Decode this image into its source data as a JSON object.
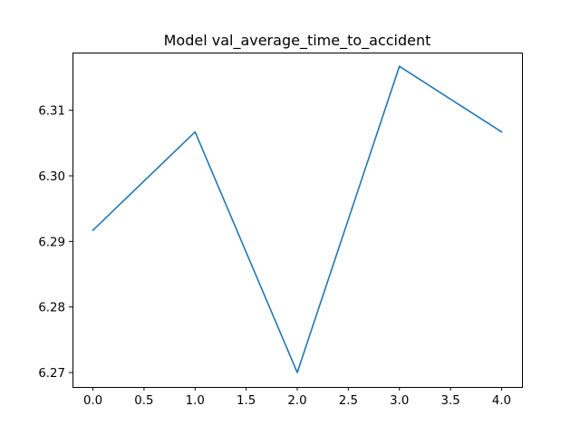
{
  "chart_data": {
    "type": "line",
    "title": "Model val_average_time_to_accident",
    "xlabel": "",
    "ylabel": "",
    "x": [
      0,
      1,
      2,
      3,
      4
    ],
    "series": [
      {
        "values": [
          6.2917,
          6.3067,
          6.27,
          6.3167,
          6.3067
        ],
        "color": "#1f77b4"
      }
    ],
    "xlim": [
      -0.2,
      4.2
    ],
    "ylim": [
      6.2678,
      6.3188
    ],
    "xticks": [
      0.0,
      0.5,
      1.0,
      1.5,
      2.0,
      2.5,
      3.0,
      3.5,
      4.0
    ],
    "xtick_labels": [
      "0.0",
      "0.5",
      "1.0",
      "1.5",
      "2.0",
      "2.5",
      "3.0",
      "3.5",
      "4.0"
    ],
    "yticks": [
      6.27,
      6.28,
      6.29,
      6.3,
      6.31
    ],
    "ytick_labels": [
      "6.27",
      "6.28",
      "6.29",
      "6.30",
      "6.31"
    ],
    "grid": false,
    "legend": false
  }
}
